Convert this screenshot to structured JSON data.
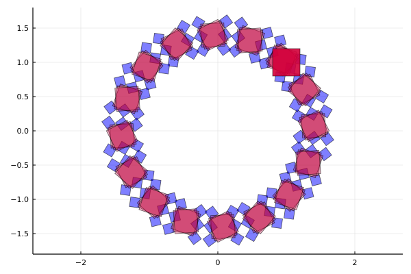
{
  "chart_data": {
    "type": "scatter",
    "title": "",
    "xlabel": "",
    "ylabel": "",
    "xlim": [
      -2.7,
      2.7
    ],
    "ylim": [
      -1.8,
      1.8
    ],
    "grid": true,
    "legend": "none",
    "x_ticks": [
      -2,
      0,
      2
    ],
    "x_tick_labels": [
      "−2",
      "0",
      "2"
    ],
    "y_ticks": [
      1.5,
      1.0,
      0.5,
      0.0,
      -0.5,
      -1.0,
      -1.5
    ],
    "y_tick_labels": [
      "1.5",
      "1.0",
      "0.5",
      "0.0",
      "−0.5",
      "−1.0",
      "−1.5"
    ],
    "ring": {
      "radius": 1.4,
      "clusters": 16,
      "angle_offset_deg": 3,
      "red_square_side": 0.34,
      "red_rotations_deg": [
        0,
        12,
        24
      ],
      "blue_square_side": 0.14,
      "blue_radii": [
        1.2,
        1.6
      ]
    },
    "series": [
      {
        "name": "blue squares",
        "color": "#0000ff",
        "alpha": 0.5,
        "stroke": "#000000"
      },
      {
        "name": "red squares",
        "color": "#c0003c",
        "alpha": 0.55,
        "stroke": "#000000"
      }
    ],
    "highlight": {
      "x": 1.0,
      "y": 1.0,
      "side": 0.4,
      "color": "#d3003a",
      "alpha": 0.9
    }
  }
}
